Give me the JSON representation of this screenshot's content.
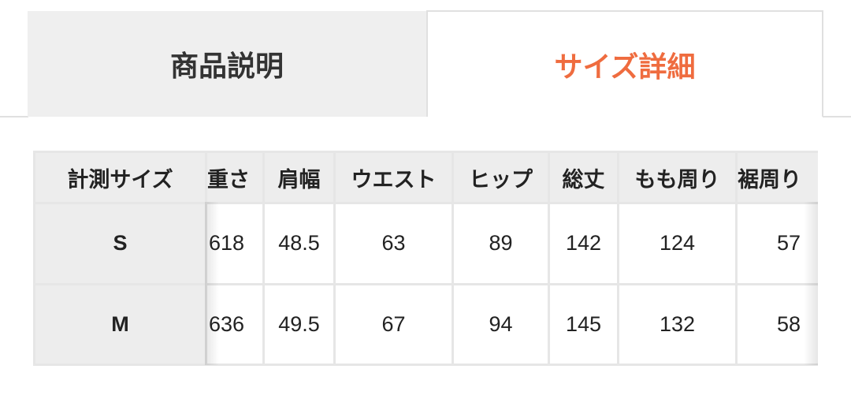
{
  "tabs": [
    {
      "label": "商品説明",
      "active": false
    },
    {
      "label": "サイズ詳細",
      "active": true
    }
  ],
  "accent_color": "#ef6c3f",
  "size_table": {
    "headers": [
      "計測サイズ",
      "重さ",
      "肩幅",
      "ウエスト",
      "ヒップ",
      "総丈",
      "もも周り",
      "裾周り"
    ],
    "rows": [
      {
        "size": "S",
        "values": [
          "618",
          "48.5",
          "63",
          "89",
          "142",
          "124",
          "57"
        ]
      },
      {
        "size": "M",
        "values": [
          "636",
          "49.5",
          "67",
          "94",
          "145",
          "132",
          "58"
        ]
      }
    ]
  }
}
